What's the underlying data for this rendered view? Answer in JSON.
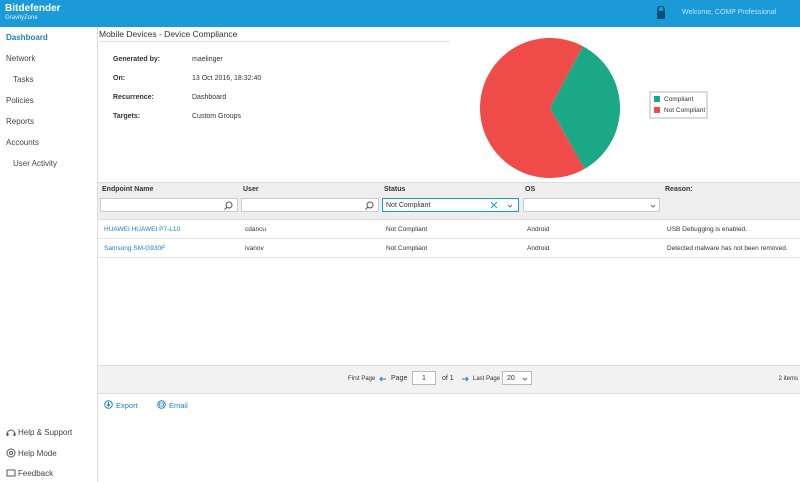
{
  "header": {
    "brand": "Bitdefender",
    "product": "GravityZone",
    "welcome": "Welcome, COMP Professional"
  },
  "sidebar": {
    "items": [
      "Dashboard",
      "Network",
      "Tasks",
      "Policies",
      "Reports",
      "Accounts",
      "User Activity"
    ],
    "footer": [
      "Help & Support",
      "Help Mode",
      "Feedback"
    ]
  },
  "report": {
    "title": "Mobile Devices - Device Compliance",
    "details": [
      [
        "Generated by:",
        "maelinger"
      ],
      [
        "On:",
        "13 Oct 2016, 18:32:40"
      ],
      [
        "Recurrence:",
        "Dashboard"
      ],
      [
        "Targets:",
        "Custom Groups"
      ]
    ]
  },
  "chart_data": {
    "type": "pie",
    "categories": [
      "Compliant",
      "Not Compliant"
    ],
    "values": [
      34,
      66
    ],
    "colors": [
      "#1aa886",
      "#ef4b48"
    ]
  },
  "table": {
    "columns": [
      "Endpoint Name",
      "User",
      "Status",
      "OS",
      "Reason:"
    ],
    "status_filter": "Not Compliant",
    "rows": [
      [
        "HUAWEI HUAWEI P7-L10",
        "cdancu",
        "Not Compliant",
        "Android",
        "USB Debugging is enabled."
      ],
      [
        "Samsung SM-G930F",
        "ivanov",
        "Not Compliant",
        "Android",
        "Detected malware has not been removed."
      ]
    ]
  },
  "pagination": {
    "first": "First Page",
    "page": "Page",
    "current": "1",
    "of": "of 1",
    "last": "Last Page",
    "per_page": "20",
    "total": "2 items"
  },
  "actions": [
    "Export",
    "Email"
  ]
}
